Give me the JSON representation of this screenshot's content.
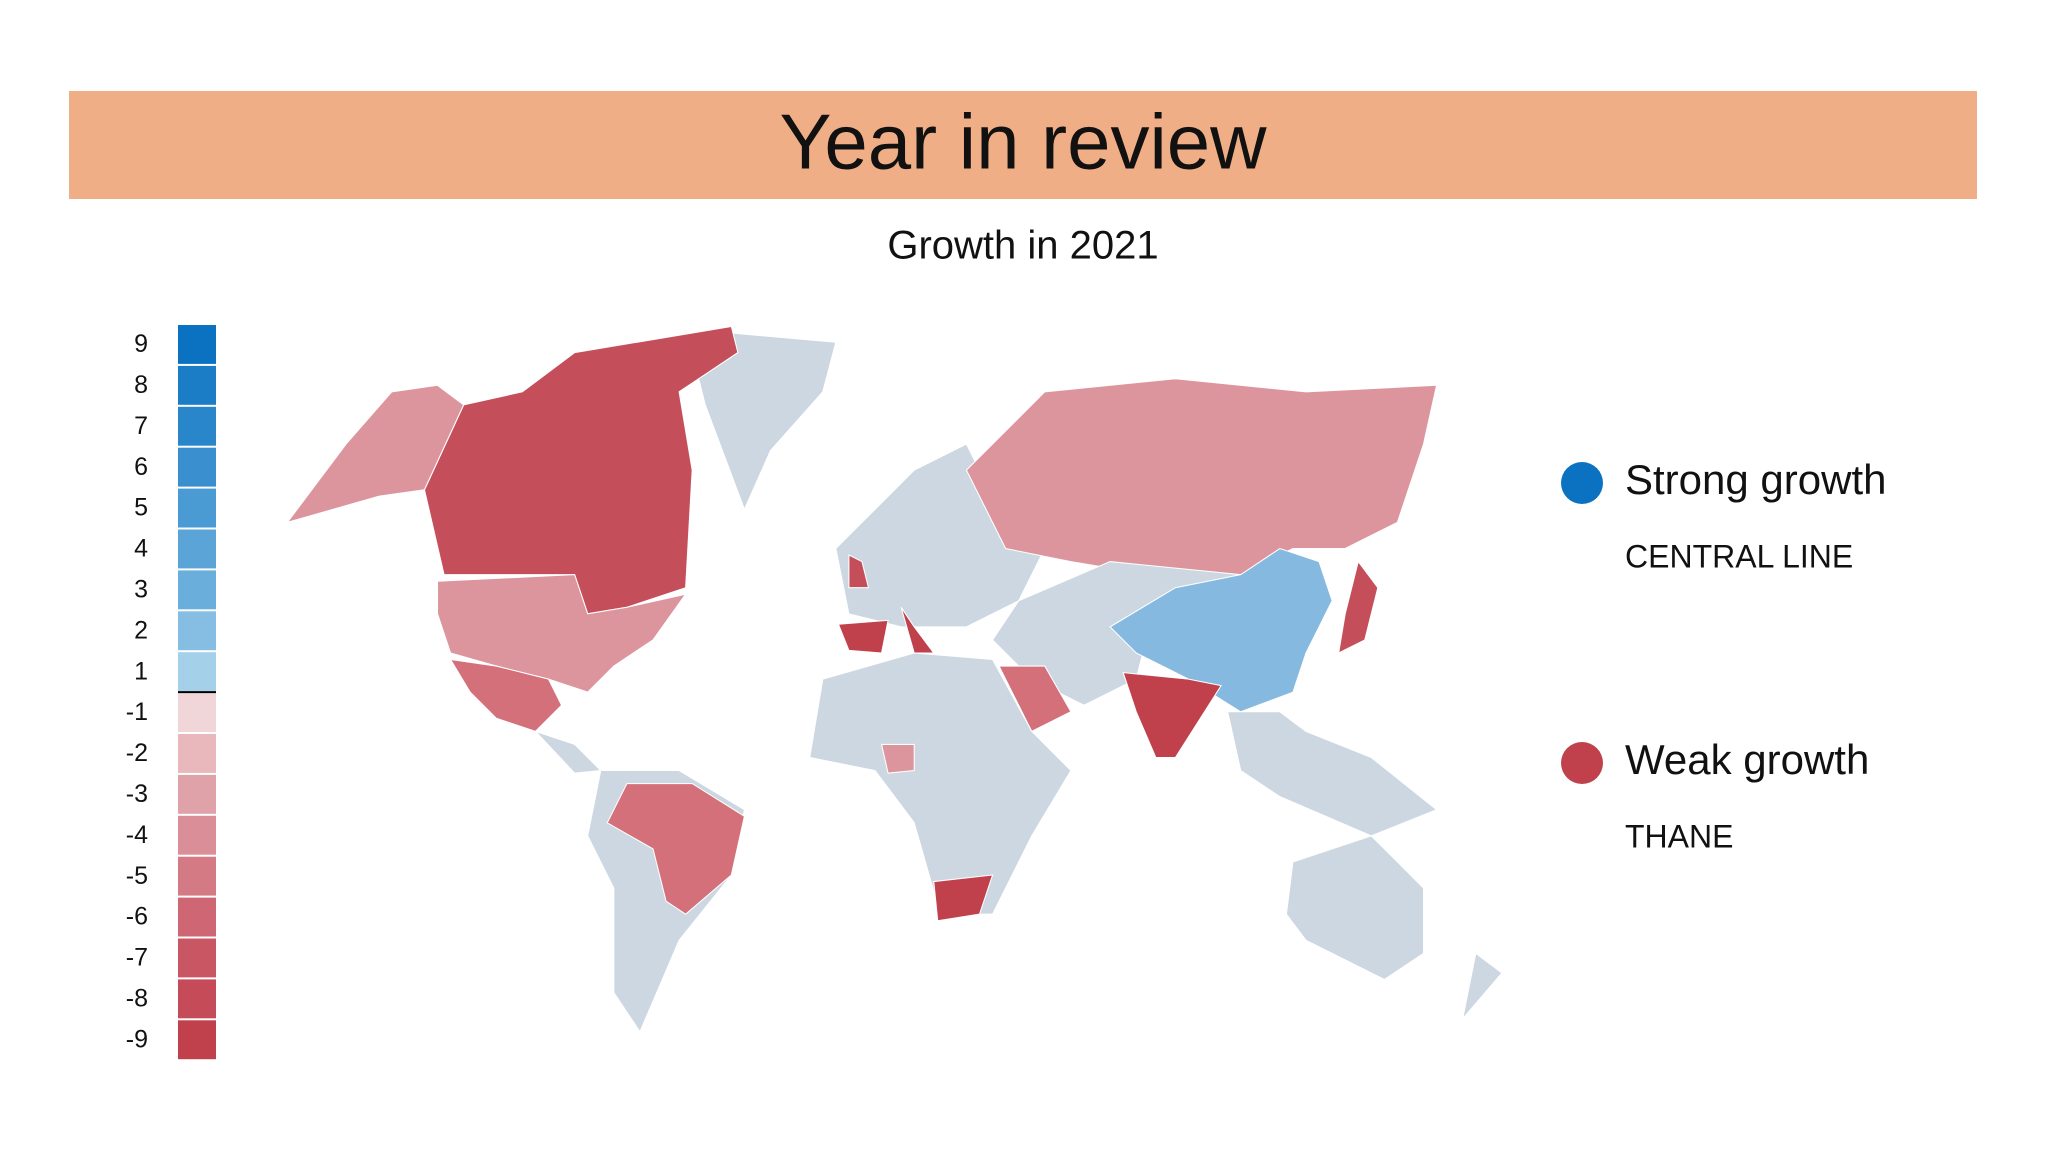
{
  "header": {
    "title": "Year in review",
    "color": "#f0ae86"
  },
  "subtitle": "Growth in 2021",
  "scale": {
    "values": [
      9,
      8,
      7,
      6,
      5,
      4,
      3,
      2,
      1,
      -1,
      -2,
      -3,
      -4,
      -5,
      -6,
      -7,
      -8,
      -9
    ],
    "colors": [
      "#0a72c0",
      "#1a7dc6",
      "#2a86ca",
      "#3a8fce",
      "#4a9ad3",
      "#5aa4d7",
      "#6aaedb",
      "#85bee2",
      "#a5d0ea",
      "#f0d6d8",
      "#e8b8bd",
      "#e0a2a9",
      "#da8e97",
      "#d47a85",
      "#ce6773",
      "#c85763",
      "#c44b57",
      "#c0404c"
    ]
  },
  "legend": [
    {
      "name": "Strong growth",
      "subtitle": "CENTRAL LINE",
      "color": "#0a72c0"
    },
    {
      "name": "Weak growth",
      "subtitle": "THANE",
      "color": "#c0404c"
    }
  ]
}
